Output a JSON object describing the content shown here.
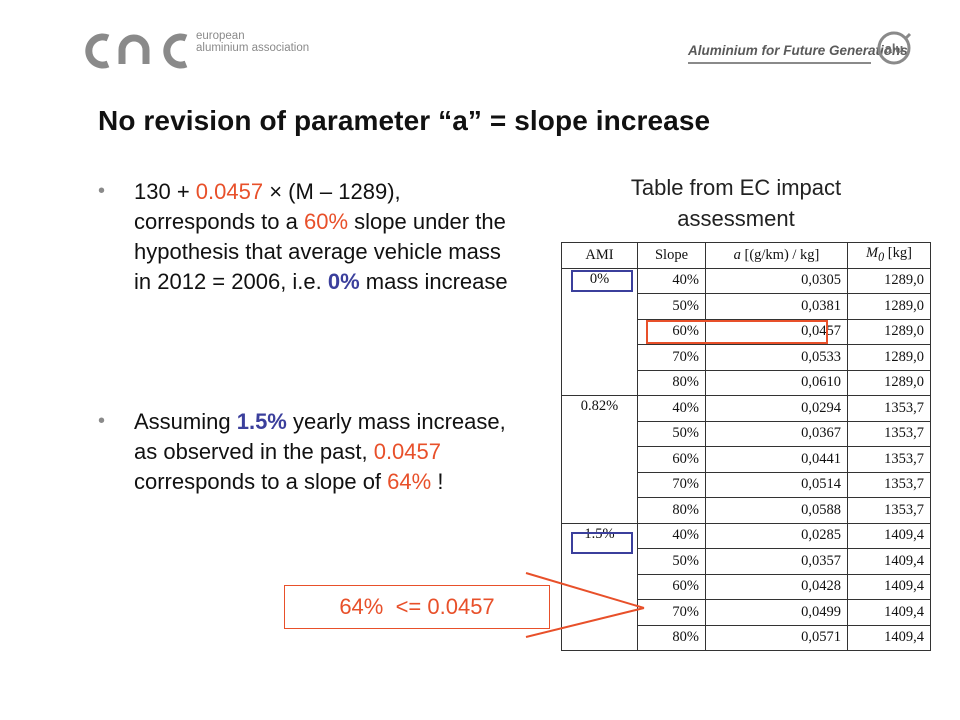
{
  "header": {
    "logo_text_line1": "european",
    "logo_text_line2": "aluminium association",
    "tagline": "Aluminium for Future Generations",
    "badge_text": "alu"
  },
  "title": "No revision of parameter “a” = slope increase",
  "bullets": [
    {
      "p1": "130 + ",
      "v1": "0.0457",
      "p2": " × (M – 1289), corresponds to a ",
      "v2": "60%",
      "p3": " slope under the hypothesis that average vehicle mass in 2012 = 2006, i.e. ",
      "v3": "0%",
      "p4": " mass increase"
    },
    {
      "p1": "Assuming ",
      "v1": "1.5%",
      "p2": " yearly mass increase, as observed in the past,  ",
      "v2": "0.0457",
      "p3": " corresponds to a slope of ",
      "v3": "64%",
      "p4": " !"
    }
  ],
  "table_caption": "Table from EC impact assessment",
  "table": {
    "headers": [
      "AMI",
      "Slope",
      "a [(g/km) / kg]",
      "M0 [kg]"
    ],
    "header_a_symbol": "a",
    "header_a_unit": " [(g/km) / kg]",
    "header_m_symbol": "M",
    "header_m_sub": "0",
    "header_m_unit": " [kg]",
    "groups": [
      {
        "ami": "0%",
        "rows": [
          [
            "40%",
            "0,0305",
            "1289,0"
          ],
          [
            "50%",
            "0,0381",
            "1289,0"
          ],
          [
            "60%",
            "0,0457",
            "1289,0"
          ],
          [
            "70%",
            "0,0533",
            "1289,0"
          ],
          [
            "80%",
            "0,0610",
            "1289,0"
          ]
        ]
      },
      {
        "ami": "0.82%",
        "rows": [
          [
            "40%",
            "0,0294",
            "1353,7"
          ],
          [
            "50%",
            "0,0367",
            "1353,7"
          ],
          [
            "60%",
            "0,0441",
            "1353,7"
          ],
          [
            "70%",
            "0,0514",
            "1353,7"
          ],
          [
            "80%",
            "0,0588",
            "1353,7"
          ]
        ]
      },
      {
        "ami": "1.5%",
        "rows": [
          [
            "40%",
            "0,0285",
            "1409,4"
          ],
          [
            "50%",
            "0,0357",
            "1409,4"
          ],
          [
            "60%",
            "0,0428",
            "1409,4"
          ],
          [
            "70%",
            "0,0499",
            "1409,4"
          ],
          [
            "80%",
            "0,0571",
            "1409,4"
          ]
        ]
      }
    ]
  },
  "callout": "64%  <= 0.0457",
  "colors": {
    "highlight_orange": "#e8502a",
    "highlight_blue": "#3b3f9c",
    "logo_grey": "#8a8a8a"
  }
}
